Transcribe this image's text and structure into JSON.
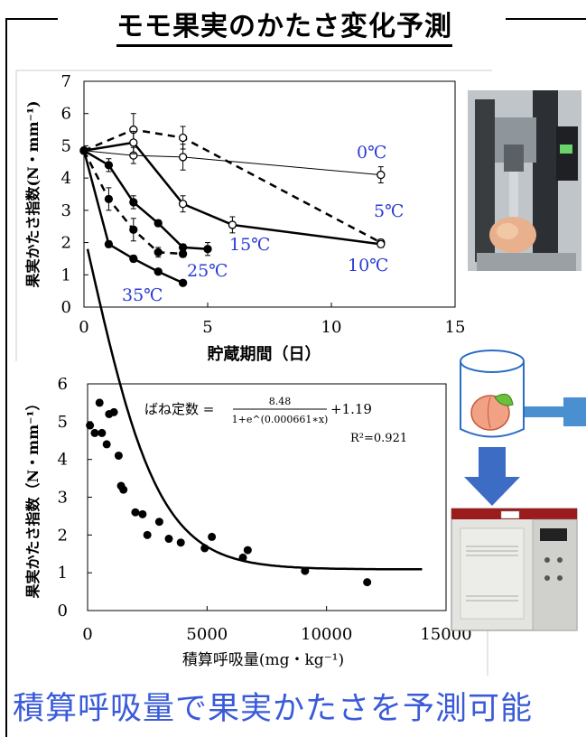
{
  "title": "モモ果実のかたさ変化予測",
  "footer": "積算呼吸量で果実かたさを予測可能",
  "chart_data": [
    {
      "type": "line",
      "xlabel": "貯蔵期間（日）",
      "ylabel": "果実かたさ指数(N・mm⁻¹)",
      "xlim": [
        0,
        15
      ],
      "ylim": [
        0,
        7
      ],
      "xticks": [
        0,
        5,
        10,
        15
      ],
      "yticks": [
        0,
        1,
        2,
        3,
        4,
        5,
        6,
        7
      ],
      "series": [
        {
          "name": "0℃",
          "x": [
            0,
            2,
            4,
            12
          ],
          "y": [
            4.85,
            4.7,
            4.65,
            4.1
          ],
          "err": [
            0.1,
            0.25,
            0.4,
            0.25
          ],
          "marker": "open",
          "style": "thin",
          "label_color": "#2b3bd6"
        },
        {
          "name": "5℃",
          "x": [
            0,
            2,
            4,
            12
          ],
          "y": [
            4.85,
            5.5,
            5.25,
            2.0
          ],
          "err": [
            0.1,
            0.5,
            0.35,
            0.1
          ],
          "marker": "open",
          "style": "dashed",
          "label_color": "#2b3bd6"
        },
        {
          "name": "10℃",
          "x": [
            0,
            2,
            4,
            6,
            12
          ],
          "y": [
            4.85,
            5.1,
            3.2,
            2.55,
            1.95
          ],
          "err": [
            0.1,
            0.35,
            0.25,
            0.25,
            0.1
          ],
          "marker": "open",
          "style": "thick",
          "label_color": "#2b3bd6"
        },
        {
          "name": "15℃",
          "x": [
            0,
            1,
            2,
            3,
            4,
            5
          ],
          "y": [
            4.85,
            4.4,
            3.25,
            2.6,
            1.85,
            1.8
          ],
          "err": [
            0.1,
            0.2,
            0.2,
            0.1,
            0.1,
            0.2
          ],
          "marker": "filled",
          "style": "thick",
          "label_color": "#2b3bd6"
        },
        {
          "name": "25℃",
          "x": [
            0,
            1,
            2,
            3,
            4
          ],
          "y": [
            4.85,
            3.35,
            2.4,
            1.7,
            1.65
          ],
          "err": [
            0.1,
            0.35,
            0.35,
            0.15,
            0.1
          ],
          "marker": "filled",
          "style": "dashed",
          "label_color": "#2b3bd6"
        },
        {
          "name": "35℃",
          "x": [
            0,
            1,
            2,
            3,
            4
          ],
          "y": [
            4.85,
            1.95,
            1.5,
            1.1,
            0.75
          ],
          "err": [
            0.1,
            0.1,
            0.1,
            0.05,
            0.05
          ],
          "marker": "filled",
          "style": "thick",
          "label_color": "#2b3bd6"
        }
      ]
    },
    {
      "type": "scatter",
      "xlabel": "積算呼吸量(mg・kg⁻¹)",
      "ylabel": "果実かたさ指数（N・mm⁻¹）",
      "xlim": [
        0,
        15000
      ],
      "ylim": [
        0,
        6
      ],
      "xticks": [
        0,
        5000,
        10000,
        15000
      ],
      "yticks": [
        0,
        1,
        2,
        3,
        4,
        5,
        6
      ],
      "points": {
        "x": [
          100,
          300,
          500,
          600,
          800,
          900,
          1100,
          1300,
          1400,
          1500,
          2000,
          2300,
          2500,
          3000,
          3400,
          3900,
          4900,
          5200,
          6500,
          6700,
          9100,
          11700
        ],
        "y": [
          4.9,
          4.7,
          5.5,
          4.7,
          4.4,
          5.2,
          5.25,
          4.1,
          3.3,
          3.2,
          2.6,
          2.55,
          2.0,
          2.35,
          1.9,
          1.8,
          1.65,
          1.95,
          1.4,
          1.6,
          1.05,
          0.75
        ]
      },
      "fit": {
        "a": 8.48,
        "k": 0.000661,
        "c": 1.19,
        "x_range": [
          0,
          14000
        ]
      },
      "equation_prefix": "ばね定数 =",
      "equation_numerator": "8.48",
      "equation_denominator": "1+e^(0.000661∗x)",
      "equation_suffix": "+1.19",
      "r2": "R²=0.921"
    }
  ]
}
